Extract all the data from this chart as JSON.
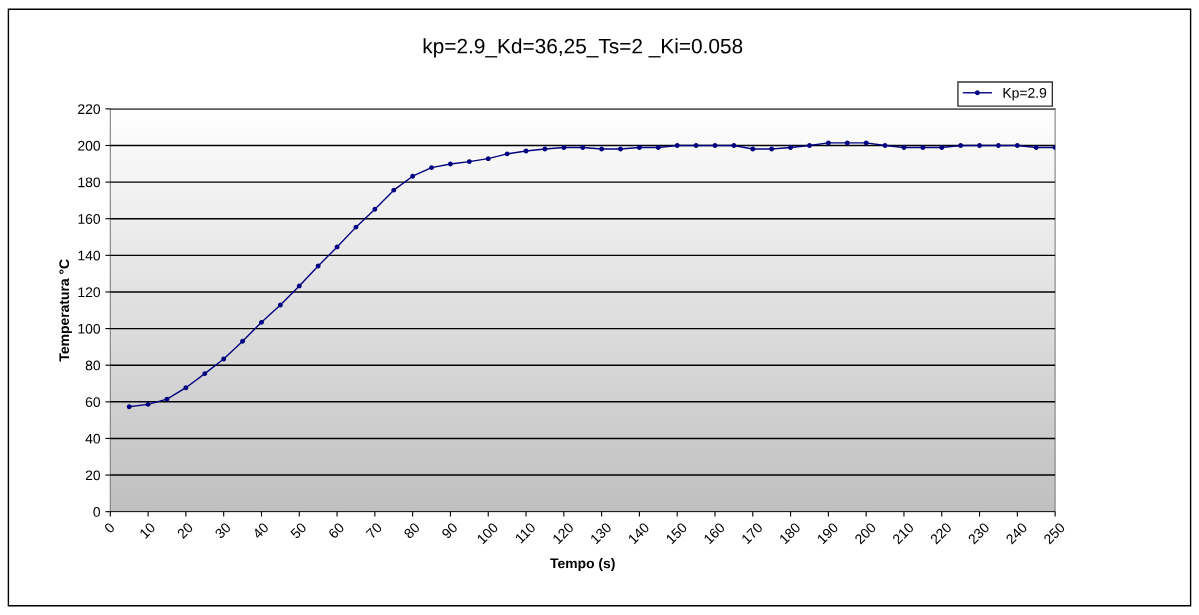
{
  "chart_data": {
    "type": "line",
    "title": "kp=2.9_Kd=36,25_Ts=2 _Ki=0.058",
    "xlabel": "Tempo (s)",
    "ylabel": "Temperatura °C",
    "x": [
      5,
      10,
      15,
      20,
      25,
      30,
      35,
      40,
      45,
      50,
      55,
      60,
      65,
      70,
      75,
      80,
      85,
      90,
      95,
      100,
      105,
      110,
      115,
      120,
      125,
      130,
      135,
      140,
      145,
      150,
      155,
      160,
      165,
      170,
      175,
      180,
      185,
      190,
      195,
      200,
      205,
      210,
      215,
      220,
      225,
      230,
      235,
      240,
      245,
      250
    ],
    "series": [
      {
        "name": "Kp=2.9",
        "color": "#000080",
        "values": [
          57.3,
          58.6,
          61.5,
          67.7,
          75.4,
          83.4,
          93.1,
          103.4,
          112.9,
          123.3,
          134.2,
          144.6,
          155.4,
          165.2,
          175.6,
          183.2,
          187.9,
          189.9,
          191.2,
          192.8,
          195.4,
          197,
          198.1,
          198.9,
          198.9,
          198.1,
          198.1,
          198.9,
          198.9,
          200,
          200,
          200,
          200,
          198.1,
          198.1,
          198.9,
          200,
          201.4,
          201.4,
          201.4,
          200,
          198.9,
          198.9,
          198.9,
          200,
          200,
          200,
          200,
          198.9,
          198.9
        ]
      }
    ],
    "xlim": [
      0,
      250
    ],
    "xticks": [
      0,
      10,
      20,
      30,
      40,
      50,
      60,
      70,
      80,
      90,
      100,
      110,
      120,
      130,
      140,
      150,
      160,
      170,
      180,
      190,
      200,
      210,
      220,
      230,
      240,
      250
    ],
    "ylim": [
      0,
      220
    ],
    "yticks": [
      0,
      20,
      40,
      60,
      80,
      100,
      120,
      140,
      160,
      180,
      200,
      220
    ],
    "grid": "y",
    "legend": "top right",
    "marker": "circle",
    "line_style": "solid"
  }
}
